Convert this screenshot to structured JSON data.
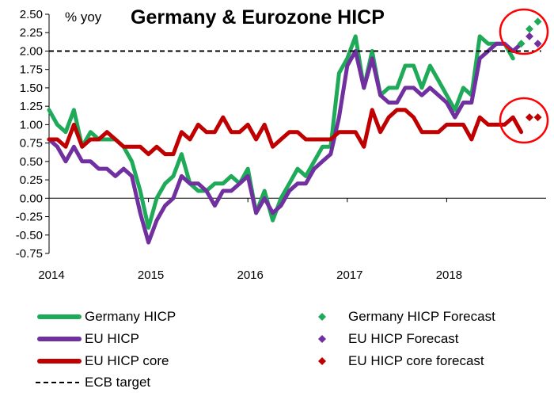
{
  "chart_data": {
    "type": "line",
    "title": "Germany & Eurozone HICP",
    "ylabel": "% yoy",
    "xlabel": "",
    "ylim": [
      -0.75,
      2.5
    ],
    "yticks": [
      "2.50",
      "2.25",
      "2.00",
      "1.75",
      "1.50",
      "1.25",
      "1.00",
      "0.75",
      "0.50",
      "0.25",
      "0.00",
      "-0.25",
      "-0.50",
      "-0.75"
    ],
    "xticks": [
      {
        "label": "2014",
        "x": 2014.0
      },
      {
        "label": "2015",
        "x": 2015.0
      },
      {
        "label": "2016",
        "x": 2016.0
      },
      {
        "label": "2017",
        "x": 2017.0
      },
      {
        "label": "2018",
        "x": 2018.0
      }
    ],
    "grid": false,
    "legend_position": "bottom",
    "colors": {
      "germany": "#1faa59",
      "eu": "#7030a0",
      "core": "#c00000",
      "target": "#000000",
      "circle": "#ff0000"
    },
    "series": [
      {
        "name": "Germany HICP",
        "key": "germany",
        "style": "line",
        "x": [
          2014.0,
          2014.083,
          2014.167,
          2014.25,
          2014.333,
          2014.417,
          2014.5,
          2014.583,
          2014.667,
          2014.75,
          2014.833,
          2014.917,
          2015.0,
          2015.083,
          2015.167,
          2015.25,
          2015.333,
          2015.417,
          2015.5,
          2015.583,
          2015.667,
          2015.75,
          2015.833,
          2015.917,
          2016.0,
          2016.083,
          2016.167,
          2016.25,
          2016.333,
          2016.417,
          2016.5,
          2016.583,
          2016.667,
          2016.75,
          2016.833,
          2016.917,
          2017.0,
          2017.083,
          2017.167,
          2017.25,
          2017.333,
          2017.417,
          2017.5,
          2017.583,
          2017.667,
          2017.75,
          2017.833,
          2017.917,
          2018.0,
          2018.083,
          2018.167,
          2018.25,
          2018.333,
          2018.417,
          2018.5,
          2018.583,
          2018.667
        ],
        "y": [
          1.2,
          1.0,
          0.9,
          1.2,
          0.7,
          0.9,
          0.8,
          0.8,
          0.8,
          0.7,
          0.5,
          0.1,
          -0.4,
          0.0,
          0.2,
          0.3,
          0.6,
          0.2,
          0.1,
          0.1,
          0.2,
          0.2,
          0.3,
          0.2,
          0.4,
          -0.2,
          0.1,
          -0.3,
          0.0,
          0.2,
          0.4,
          0.3,
          0.5,
          0.7,
          0.7,
          1.7,
          1.9,
          2.2,
          1.5,
          2.0,
          1.4,
          1.5,
          1.5,
          1.8,
          1.8,
          1.5,
          1.8,
          1.6,
          1.4,
          1.2,
          1.5,
          1.4,
          2.2,
          2.1,
          2.1,
          2.1,
          1.9
        ]
      },
      {
        "name": "EU HICP",
        "key": "eu",
        "style": "line",
        "x": [
          2014.0,
          2014.083,
          2014.167,
          2014.25,
          2014.333,
          2014.417,
          2014.5,
          2014.583,
          2014.667,
          2014.75,
          2014.833,
          2014.917,
          2015.0,
          2015.083,
          2015.167,
          2015.25,
          2015.333,
          2015.417,
          2015.5,
          2015.583,
          2015.667,
          2015.75,
          2015.833,
          2015.917,
          2016.0,
          2016.083,
          2016.167,
          2016.25,
          2016.333,
          2016.417,
          2016.5,
          2016.583,
          2016.667,
          2016.75,
          2016.833,
          2016.917,
          2017.0,
          2017.083,
          2017.167,
          2017.25,
          2017.333,
          2017.417,
          2017.5,
          2017.583,
          2017.667,
          2017.75,
          2017.833,
          2017.917,
          2018.0,
          2018.083,
          2018.167,
          2018.25,
          2018.333,
          2018.417,
          2018.5,
          2018.583,
          2018.667,
          2018.75
        ],
        "y": [
          0.8,
          0.7,
          0.5,
          0.7,
          0.5,
          0.5,
          0.4,
          0.4,
          0.3,
          0.4,
          0.3,
          -0.2,
          -0.6,
          -0.3,
          -0.1,
          0.0,
          0.3,
          0.2,
          0.2,
          0.1,
          -0.1,
          0.1,
          0.1,
          0.2,
          0.3,
          -0.2,
          0.0,
          -0.2,
          -0.1,
          0.1,
          0.2,
          0.2,
          0.4,
          0.5,
          0.6,
          1.1,
          1.8,
          2.0,
          1.5,
          1.9,
          1.4,
          1.3,
          1.3,
          1.5,
          1.5,
          1.4,
          1.5,
          1.4,
          1.3,
          1.1,
          1.3,
          1.3,
          1.9,
          2.0,
          2.1,
          2.1,
          2.0,
          2.1
        ]
      },
      {
        "name": "EU HICP core",
        "key": "core",
        "style": "line",
        "x": [
          2014.0,
          2014.083,
          2014.167,
          2014.25,
          2014.333,
          2014.417,
          2014.5,
          2014.583,
          2014.667,
          2014.75,
          2014.833,
          2014.917,
          2015.0,
          2015.083,
          2015.167,
          2015.25,
          2015.333,
          2015.417,
          2015.5,
          2015.583,
          2015.667,
          2015.75,
          2015.833,
          2015.917,
          2016.0,
          2016.083,
          2016.167,
          2016.25,
          2016.333,
          2016.417,
          2016.5,
          2016.583,
          2016.667,
          2016.75,
          2016.833,
          2016.917,
          2017.0,
          2017.083,
          2017.167,
          2017.25,
          2017.333,
          2017.417,
          2017.5,
          2017.583,
          2017.667,
          2017.75,
          2017.833,
          2017.917,
          2018.0,
          2018.083,
          2018.167,
          2018.25,
          2018.333,
          2018.417,
          2018.5,
          2018.583,
          2018.667,
          2018.75
        ],
        "y": [
          0.8,
          0.8,
          0.7,
          1.0,
          0.7,
          0.8,
          0.8,
          0.9,
          0.8,
          0.7,
          0.7,
          0.7,
          0.6,
          0.7,
          0.6,
          0.6,
          0.9,
          0.8,
          1.0,
          0.9,
          0.9,
          1.1,
          0.9,
          0.9,
          1.0,
          0.8,
          1.0,
          0.7,
          0.8,
          0.9,
          0.9,
          0.8,
          0.8,
          0.8,
          0.8,
          0.9,
          0.9,
          0.9,
          0.7,
          1.2,
          0.9,
          1.1,
          1.2,
          1.2,
          1.1,
          0.9,
          0.9,
          0.9,
          1.0,
          1.0,
          1.0,
          0.8,
          1.1,
          1.0,
          1.0,
          1.0,
          1.1,
          0.9
        ]
      },
      {
        "name": "ECB target",
        "key": "target",
        "style": "dashed",
        "x": [
          2014.0,
          2018.95
        ],
        "y": [
          2.0,
          2.0
        ]
      },
      {
        "name": "Germany HICP Forecast",
        "key": "germany",
        "style": "marker",
        "x": [
          2018.75,
          2018.833,
          2018.917
        ],
        "y": [
          2.1,
          2.3,
          2.4
        ]
      },
      {
        "name": "EU HICP Forecast",
        "key": "eu",
        "style": "marker",
        "x": [
          2018.833,
          2018.917
        ],
        "y": [
          2.2,
          2.1
        ]
      },
      {
        "name": "EU HICP core forecast",
        "key": "core",
        "style": "marker",
        "x": [
          2018.833,
          2018.917
        ],
        "y": [
          1.1,
          1.1
        ]
      }
    ],
    "legend": {
      "left": [
        "Germany HICP",
        "EU HICP",
        "EU HICP core",
        "ECB target"
      ],
      "right": [
        "Germany HICP Forecast",
        "EU HICP Forecast",
        "EU HICP core forecast"
      ]
    }
  }
}
